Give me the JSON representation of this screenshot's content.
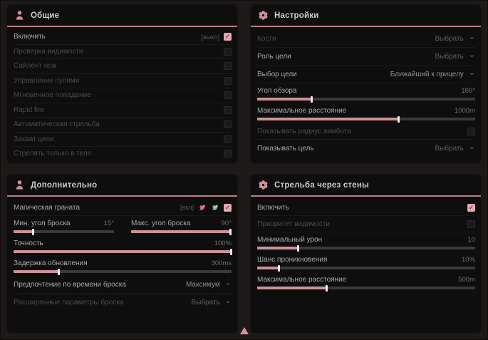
{
  "accent": {
    "pink": "#cf9199",
    "underline": "#bd7f88",
    "checkbox": "#e4a9b0",
    "heart_red": "#d4596a",
    "heart_green": "#6fbf73"
  },
  "icons": {
    "general": "user-icon",
    "settings": "flower-gear-icon",
    "extra": "user-icon",
    "walls": "flower-gear-icon",
    "grenade_red": "heart-red-icon",
    "grenade_green": "heart-green-icon",
    "cursor": "triangle-cursor"
  },
  "panels": {
    "general": {
      "title": "Общие",
      "rows": {
        "enable": {
          "label": "Включить",
          "hotkey": "[выкл]",
          "checked": true
        },
        "visibility_check": {
          "label": "Проверка видимости",
          "checked": false
        },
        "silent_knife": {
          "label": "Сайлент нож",
          "checked": false
        },
        "bullet_control": {
          "label": "Управление пулями",
          "checked": false
        },
        "instant_hit": {
          "label": "Мгновенное попадание",
          "checked": false
        },
        "rapid_fire": {
          "label": "Rapid fire",
          "checked": false
        },
        "auto_fire": {
          "label": "Автоматическая стрельба",
          "checked": false
        },
        "target_lock": {
          "label": "Захват цели",
          "checked": false
        },
        "body_only": {
          "label": "Стрелять только в тело",
          "checked": false
        }
      }
    },
    "settings": {
      "title": "Настройки",
      "rows": {
        "bones": {
          "label": "Кости",
          "value": "Выбрать"
        },
        "target_role": {
          "label": "Роль цели",
          "value": "Выбрать"
        },
        "target_select": {
          "label": "Выбор цели",
          "value": "Ближайший к прицелу"
        },
        "fov": {
          "label": "Угол обзора",
          "value": "180°",
          "fill": 25
        },
        "max_distance": {
          "label": "Максимальное расстояние",
          "value": "1000m",
          "fill": 65
        },
        "show_radius": {
          "label": "Показывать радиус аимбота",
          "checked": false
        },
        "show_target": {
          "label": "Показывать цель",
          "value": "Выбрать"
        }
      }
    },
    "extra": {
      "title": "Дополнительно",
      "rows": {
        "grenade": {
          "label": "Магическая граната",
          "hotkey": "[вкл]",
          "checked": true
        },
        "min_angle": {
          "label": "Мин. угол броска",
          "value": "15°",
          "fill": 20
        },
        "max_angle": {
          "label": "Макс. угол броска",
          "value": "90°",
          "fill": 99
        },
        "accuracy": {
          "label": "Точность",
          "value": "100%",
          "fill": 100
        },
        "delay": {
          "label": "Задержка обновления",
          "value": "300ms",
          "fill": 21
        },
        "time_pref": {
          "label": "Предпочтение по времени броска",
          "value": "Максимум"
        },
        "advanced": {
          "label": "Расширенные параметры броска",
          "value": "Выбрать"
        }
      }
    },
    "walls": {
      "title": "Стрельба через стены",
      "rows": {
        "enable": {
          "label": "Включить",
          "checked": true
        },
        "visibility_priority": {
          "label": "Приоритет видимости",
          "checked": false
        },
        "min_damage": {
          "label": "Минимальный урон",
          "value": "10",
          "fill": 19
        },
        "penetration_chance": {
          "label": "Шанс проникновения",
          "value": "10%",
          "fill": 10
        },
        "max_distance": {
          "label": "Максимальное расстояние",
          "value": "500m",
          "fill": 32
        }
      }
    }
  }
}
